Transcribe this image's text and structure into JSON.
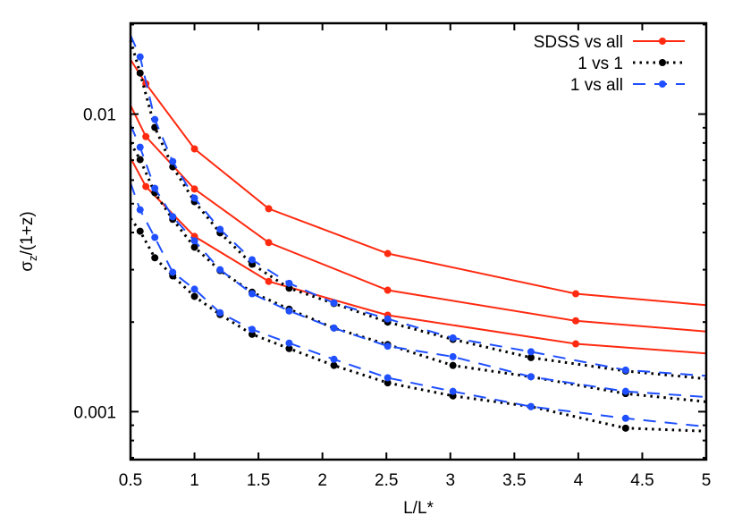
{
  "chart_data": {
    "type": "line",
    "xlabel": "L/L*",
    "ylabel": "σ_z/(1+z)",
    "xlim": [
      0.5,
      5
    ],
    "ylim": [
      0.00069,
      0.0202
    ],
    "yscale": "log",
    "xticks": [
      "0.5",
      "1",
      "1.5",
      "2",
      "2.5",
      "3",
      "3.5",
      "4",
      "4.5",
      "5"
    ],
    "yticks": [
      "0.01",
      "0.001"
    ],
    "grid": false,
    "legend_position": "top-right",
    "series": [
      {
        "name": "SDSS vs all",
        "color": "#ff2a10",
        "style": "solid",
        "curves": [
          {
            "x": [
              0.5,
              0.62,
              1,
              1.58,
              2.51,
              3.98,
              5
            ],
            "y": [
              0.01525,
              0.01265,
              0.00764,
              0.00481,
              0.0034,
              0.00249,
              0.00228
            ]
          },
          {
            "x": [
              0.5,
              0.62,
              1,
              1.58,
              2.51,
              3.98,
              5
            ],
            "y": [
              0.0107,
              0.0084,
              0.0056,
              0.0037,
              0.00256,
              0.00202,
              0.00186
            ]
          },
          {
            "x": [
              0.5,
              0.62,
              1,
              1.58,
              2.51,
              3.98,
              5
            ],
            "y": [
              0.00713,
              0.00571,
              0.00388,
              0.00274,
              0.00211,
              0.00169,
              0.00157
            ]
          }
        ]
      },
      {
        "name": "1 vs 1",
        "color": "#000000",
        "style": "dotted",
        "curves": [
          {
            "x": [
              0.5,
              0.575,
              0.69,
              0.83,
              1,
              1.2,
              1.45,
              1.74,
              2.09,
              2.51,
              3.02,
              3.63,
              4.37,
              5
            ],
            "y": [
              0.0177,
              0.01374,
              0.00902,
              0.00665,
              0.00508,
              0.00399,
              0.00313,
              0.0026,
              0.00231,
              0.002,
              0.00175,
              0.00152,
              0.00137,
              0.00129
            ]
          },
          {
            "x": [
              0.5,
              0.575,
              0.69,
              0.83,
              1,
              1.2,
              1.45,
              1.74,
              2.09,
              2.51,
              3.02,
              3.63,
              4.37,
              5
            ],
            "y": [
              0.00801,
              0.00703,
              0.00544,
              0.00443,
              0.00357,
              0.00298,
              0.00252,
              0.00221,
              0.00191,
              0.00168,
              0.00143,
              0.00131,
              0.00115,
              0.00108
            ]
          },
          {
            "x": [
              0.5,
              0.575,
              0.69,
              0.83,
              1,
              1.2,
              1.45,
              1.74,
              2.09,
              2.51,
              3.02,
              3.63,
              4.37,
              5
            ],
            "y": [
              0.00446,
              0.00404,
              0.00329,
              0.00286,
              0.00244,
              0.00212,
              0.00182,
              0.00163,
              0.00143,
              0.00125,
              0.00113,
              0.00104,
              0.00088,
              0.00086
            ]
          }
        ]
      },
      {
        "name": "1 vs all",
        "color": "#1f4fff",
        "style": "dashed",
        "curves": [
          {
            "x": [
              0.5,
              0.575,
              0.69,
              0.83,
              1,
              1.2,
              1.45,
              1.74,
              2.09,
              2.51,
              3.02,
              3.63,
              4.37,
              5
            ],
            "y": [
              0.0184,
              0.01557,
              0.00959,
              0.00693,
              0.00522,
              0.0041,
              0.00324,
              0.0027,
              0.00232,
              0.00205,
              0.00177,
              0.00159,
              0.00138,
              0.00132
            ]
          },
          {
            "x": [
              0.5,
              0.575,
              0.69,
              0.83,
              1,
              1.2,
              1.45,
              1.74,
              2.09,
              2.51,
              3.02,
              3.63,
              4.37,
              5
            ],
            "y": [
              0.0092,
              0.00774,
              0.00563,
              0.00452,
              0.00375,
              0.003,
              0.00249,
              0.00218,
              0.00191,
              0.00166,
              0.00153,
              0.00131,
              0.00117,
              0.00112
            ]
          },
          {
            "x": [
              0.5,
              0.575,
              0.69,
              0.83,
              1,
              1.2,
              1.45,
              1.74,
              2.09,
              2.51,
              3.02,
              3.63,
              4.37,
              5
            ],
            "y": [
              0.00587,
              0.00477,
              0.00385,
              0.00294,
              0.00258,
              0.00215,
              0.00189,
              0.0017,
              0.0015,
              0.0013,
              0.00117,
              0.00104,
              0.00095,
              0.00089
            ]
          }
        ]
      }
    ]
  }
}
